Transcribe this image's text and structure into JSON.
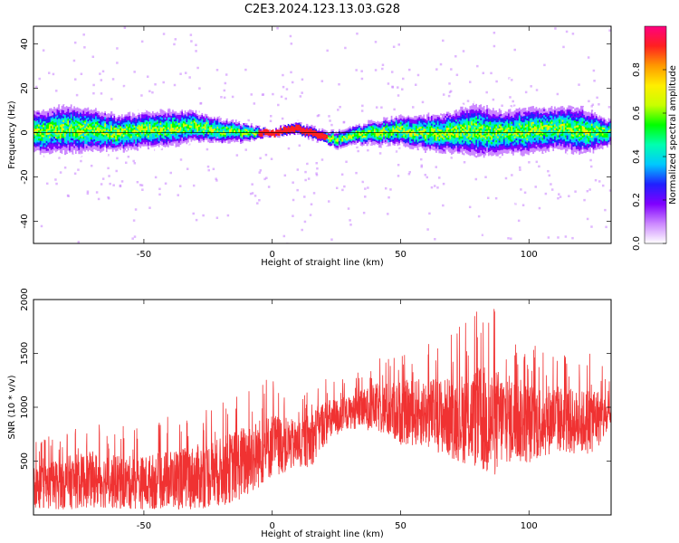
{
  "title": "C2E3.2024.123.13.03.G28",
  "chart_data": [
    {
      "type": "heatmap",
      "xlabel": "Height of straight line (km)",
      "ylabel": "Frequency (Hz)",
      "xlim": [
        -93,
        132
      ],
      "ylim": [
        -50,
        48
      ],
      "xticks": [
        -50,
        0,
        50,
        100
      ],
      "yticks": [
        -40,
        -20,
        0,
        20,
        40
      ],
      "colorbar": {
        "label": "Normalized spectral amplitude",
        "range": [
          0,
          1
        ],
        "ticks": [
          "0.0",
          "0.2",
          "0.4",
          "0.6",
          "0.8"
        ],
        "colors": [
          "#ffffff",
          "#cc88ff",
          "#8000ff",
          "#2020ff",
          "#00c8ff",
          "#00ffb0",
          "#00ff00",
          "#c8ff00",
          "#ffee00",
          "#ff9900",
          "#ff2020",
          "#ff0080"
        ]
      },
      "ridge": {
        "description_values_hz": "center frequency of the energy band along height",
        "x": [
          -93,
          -80,
          -70,
          -60,
          -50,
          -40,
          -30,
          -20,
          -10,
          0,
          5,
          10,
          15,
          20,
          25,
          30,
          40,
          50,
          60,
          70,
          80,
          90,
          100,
          110,
          120,
          132
        ],
        "y": [
          0,
          2,
          1,
          0,
          1,
          2,
          3,
          1,
          0,
          0,
          1,
          2,
          0,
          -2,
          -3,
          -1,
          0,
          1,
          0,
          0,
          1,
          0,
          1,
          2,
          1,
          0
        ],
        "halfwidth": [
          7,
          8,
          7,
          6,
          6,
          6,
          5,
          4,
          3,
          1,
          2,
          2,
          2,
          2,
          3,
          3,
          4,
          5,
          6,
          7,
          9,
          7,
          8,
          7,
          8,
          4
        ]
      }
    },
    {
      "type": "line",
      "xlabel": "Height of straight line (km)",
      "ylabel": "SNR (10 * v/v)",
      "xlim": [
        -93,
        132
      ],
      "ylim": [
        0,
        2000
      ],
      "xticks": [
        -50,
        0,
        50,
        100
      ],
      "yticks": [
        500,
        1000,
        1500,
        2000
      ],
      "color": "#f03232",
      "envelope": {
        "x": [
          -93,
          -80,
          -70,
          -60,
          -50,
          -40,
          -30,
          -20,
          -10,
          0,
          10,
          15,
          20,
          30,
          40,
          50,
          60,
          70,
          80,
          85,
          90,
          100,
          110,
          120,
          125,
          132
        ],
        "mean": [
          250,
          300,
          330,
          300,
          300,
          330,
          350,
          400,
          500,
          650,
          650,
          700,
          850,
          950,
          1000,
          950,
          950,
          900,
          900,
          850,
          900,
          850,
          900,
          850,
          900,
          900
        ],
        "amp": [
          200,
          250,
          260,
          250,
          250,
          280,
          300,
          320,
          350,
          300,
          220,
          260,
          220,
          150,
          220,
          300,
          320,
          380,
          480,
          550,
          430,
          380,
          320,
          300,
          320,
          150
        ]
      }
    }
  ]
}
